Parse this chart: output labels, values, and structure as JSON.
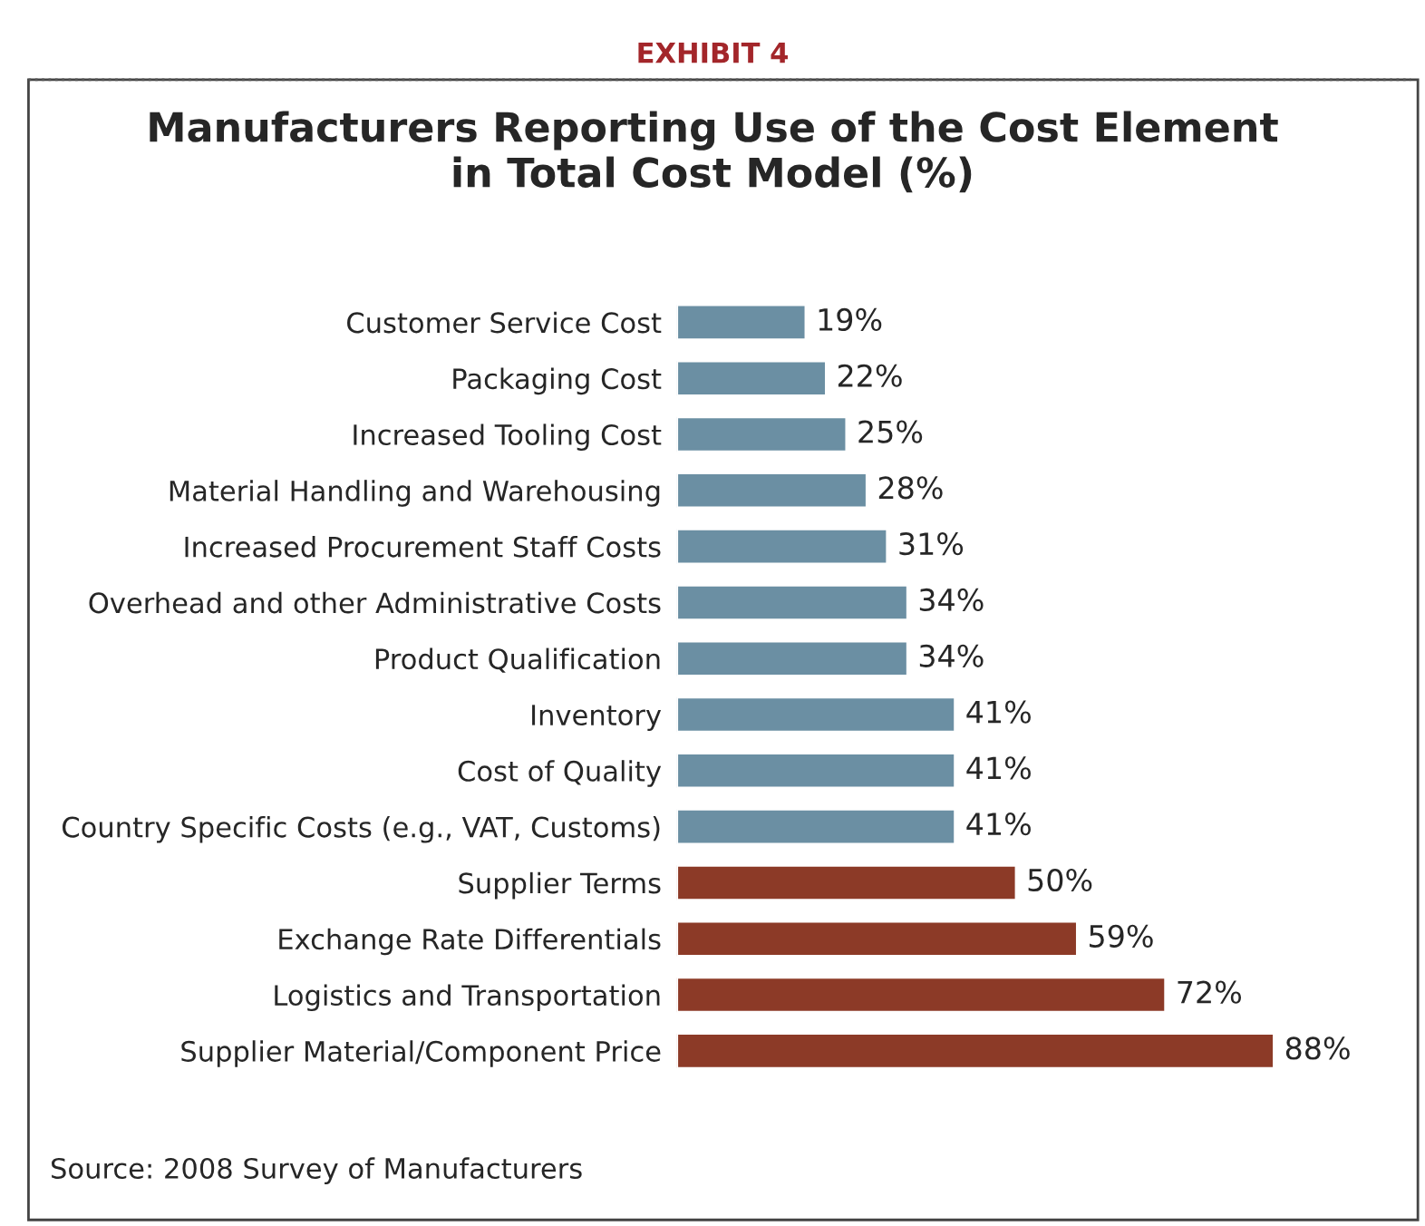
{
  "chart_data": {
    "type": "bar",
    "orientation": "horizontal",
    "title": "Manufacturers Reporting Use of the Cost Element\nin Total Cost Model (%)",
    "annotations": [
      "EXHIBIT 4",
      "Source: 2008 Survey of Manufacturers"
    ],
    "categories": [
      "Customer Service Cost",
      "Packaging Cost",
      "Increased Tooling Cost",
      "Material Handling and Warehousing",
      "Increased Procurement Staff Costs",
      "Overhead and other Administrative Costs",
      "Product Qualification",
      "Inventory",
      "Cost of Quality",
      "Country Specific Costs (e.g., VAT, Customs)",
      "Supplier Terms",
      "Exchange Rate Differentials",
      "Logistics and Transportation",
      "Supplier Material/Component Price"
    ],
    "values": [
      19,
      22,
      25,
      28,
      31,
      34,
      34,
      41,
      41,
      41,
      50,
      59,
      72,
      88
    ],
    "value_labels": [
      "19%",
      "22%",
      "25%",
      "28%",
      "31%",
      "34%",
      "34%",
      "41%",
      "41%",
      "41%",
      "50%",
      "59%",
      "72%",
      "88%"
    ],
    "colors": [
      "#6b8fa3",
      "#6b8fa3",
      "#6b8fa3",
      "#6b8fa3",
      "#6b8fa3",
      "#6b8fa3",
      "#6b8fa3",
      "#6b8fa3",
      "#6b8fa3",
      "#6b8fa3",
      "#8c3a27",
      "#8c3a27",
      "#8c3a27",
      "#8c3a27"
    ],
    "grid": false,
    "legend": false
  }
}
